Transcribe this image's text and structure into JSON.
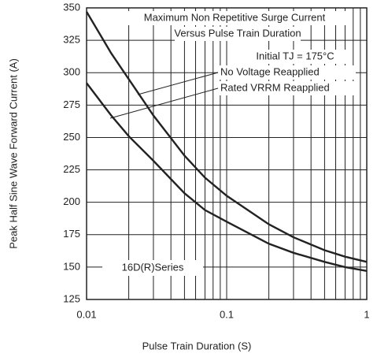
{
  "chart_data": {
    "type": "line",
    "title": "Maximum Non Repetitive Surge Current",
    "subtitle": "Versus Pulse Train Duration",
    "condition": "Initial TJ = 175°C",
    "annotation": "16D(R)Series",
    "x_label": "Pulse Train Duration (S)",
    "y_label": "Peak Half Sine Wave Forward Current (A)",
    "log_x": true,
    "grid": true,
    "color": "#222222",
    "xlim": [
      0.01,
      1
    ],
    "ylim": [
      125,
      350
    ],
    "xticks": [
      0.01,
      0.1,
      1
    ],
    "xminorticks": [
      0.02,
      0.03,
      0.04,
      0.05,
      0.06,
      0.07,
      0.08,
      0.09,
      0.2,
      0.3,
      0.4,
      0.5,
      0.6,
      0.7,
      0.8,
      0.9
    ],
    "yticks": [
      125,
      150,
      175,
      200,
      225,
      250,
      275,
      300,
      325,
      350
    ],
    "x": [
      0.01,
      0.015,
      0.02,
      0.03,
      0.05,
      0.07,
      0.1,
      0.2,
      0.3,
      0.5,
      0.7,
      1
    ],
    "series": [
      {
        "name": "No Voltage Reapplied",
        "color": "#222222",
        "values": [
          347,
          315,
          295,
          267,
          236,
          219,
          205,
          183,
          173,
          163,
          158,
          154
        ]
      },
      {
        "name": "Rated VRRM Reapplied",
        "color": "#222222",
        "values": [
          292,
          267,
          251,
          232,
          207,
          194,
          185,
          168,
          161,
          154,
          150,
          147
        ]
      }
    ]
  }
}
